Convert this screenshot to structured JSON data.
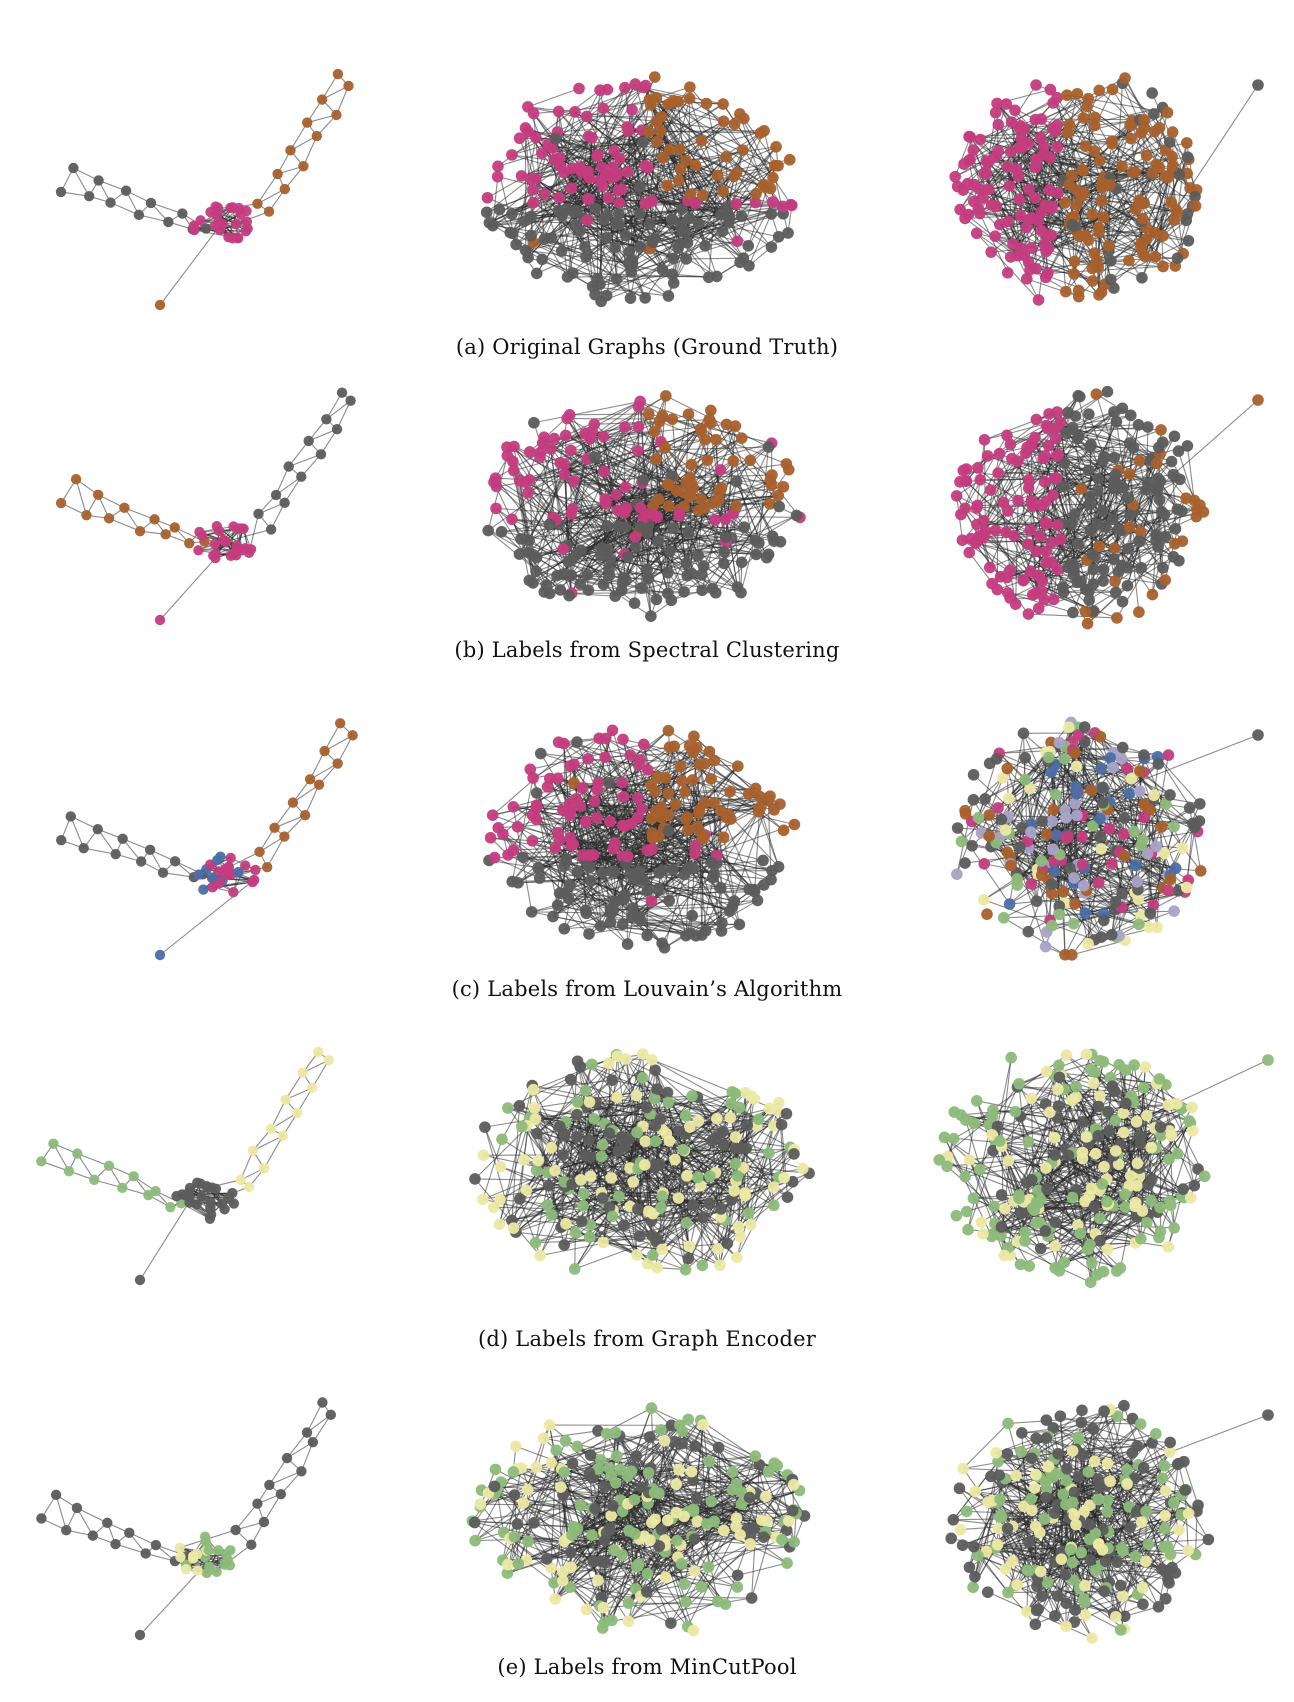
{
  "captions": {
    "a": "(a) Original Graphs (Ground Truth)",
    "b": "(b) Labels from Spectral Clustering",
    "c": "(c) Labels from Louvain’s Algorithm",
    "d": "(d) Labels from Graph Encoder",
    "e": "(e) Labels from MinCutPool"
  },
  "colors": {
    "gray": "#5c5c5c",
    "magenta": "#c43c7e",
    "orange": "#a8602c",
    "blue": "#4b6ea8",
    "lavender": "#a9a3c8",
    "green": "#8dba7a",
    "yellow": "#ece9a4",
    "edge": "#2b2b2b"
  },
  "rows": [
    {
      "id": "a",
      "panels": [
        {
          "kind": "chain",
          "chain_left": "gray",
          "chain_right": "orange",
          "cluster": [
            "magenta"
          ],
          "tail": "orange"
        },
        {
          "kind": "blob",
          "scheme": "three-band",
          "palette": [
            "magenta",
            "orange",
            "gray"
          ]
        },
        {
          "kind": "round",
          "scheme": "left-right",
          "palette": [
            "magenta",
            "orange",
            "gray"
          ]
        }
      ]
    },
    {
      "id": "b",
      "panels": [
        {
          "kind": "chain",
          "chain_left": "orange",
          "chain_right": "gray",
          "cluster": [
            "magenta"
          ],
          "tail": "magenta"
        },
        {
          "kind": "blob",
          "scheme": "three-band",
          "palette": [
            "magenta",
            "orange",
            "gray"
          ]
        },
        {
          "kind": "round",
          "scheme": "left-right",
          "palette": [
            "magenta",
            "gray",
            "orange"
          ]
        }
      ]
    },
    {
      "id": "c",
      "panels": [
        {
          "kind": "chain",
          "chain_left": "gray",
          "chain_right": "orange",
          "cluster": [
            "blue",
            "magenta"
          ],
          "tail": "blue"
        },
        {
          "kind": "blob",
          "scheme": "three-band",
          "palette": [
            "magenta",
            "orange",
            "gray"
          ]
        },
        {
          "kind": "round",
          "scheme": "mixed",
          "palette": [
            "yellow",
            "blue",
            "green",
            "lavender",
            "magenta",
            "orange",
            "gray"
          ]
        }
      ]
    },
    {
      "id": "d",
      "panels": [
        {
          "kind": "chain",
          "chain_left": "green",
          "chain_right": "yellow",
          "cluster": [
            "gray"
          ],
          "tail": "gray"
        },
        {
          "kind": "blob",
          "scheme": "mixed",
          "palette": [
            "gray",
            "green",
            "yellow"
          ]
        },
        {
          "kind": "round",
          "scheme": "mixed",
          "palette": [
            "yellow",
            "gray",
            "green"
          ]
        }
      ]
    },
    {
      "id": "e",
      "panels": [
        {
          "kind": "chain",
          "chain_left": "gray",
          "chain_right": "gray",
          "cluster": [
            "yellow",
            "green"
          ],
          "tail": "gray"
        },
        {
          "kind": "blob",
          "scheme": "mixed",
          "palette": [
            "gray",
            "yellow",
            "green"
          ]
        },
        {
          "kind": "round",
          "scheme": "mixed",
          "palette": [
            "green",
            "yellow",
            "gray"
          ]
        }
      ]
    }
  ]
}
